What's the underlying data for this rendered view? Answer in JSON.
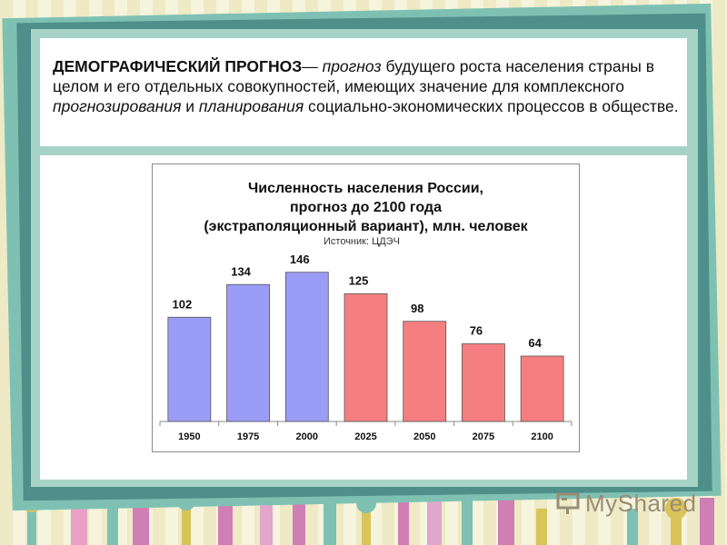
{
  "definition": {
    "term": "ДЕМОГРАФИЧЕСКИЙ ПРОГНОЗ",
    "dash": "—",
    "part1_italic": "прогноз",
    "part2": " будущего роста населения страны в целом и его отдельных совокупностей, имеющих значение для комплексного ",
    "part3_italic": "прогнозирования",
    "part4": " и ",
    "part5_italic": "планирования",
    "part6": " социально-экономических процессов в обществе."
  },
  "chart_data": {
    "type": "bar",
    "title_lines": [
      "Численность населения России,",
      "прогноз до 2100 года",
      "(экстраполяционный вариант), млн. человек"
    ],
    "source": "Источник: ЦДЭЧ",
    "categories": [
      "1950",
      "1975",
      "2000",
      "2025",
      "2050",
      "2075",
      "2100"
    ],
    "values": [
      102,
      134,
      146,
      125,
      98,
      76,
      64
    ],
    "data_labels": [
      "102",
      "134",
      "146",
      "125",
      "98",
      "76",
      "64"
    ],
    "colors": [
      "#9a9cf6",
      "#9a9cf6",
      "#9a9cf6",
      "#f57f80",
      "#f57f80",
      "#f57f80",
      "#f57f80"
    ],
    "ylim": [
      0,
      160
    ],
    "grid": false,
    "xlabel": "",
    "ylabel": ""
  },
  "logo": {
    "text": "MyShared",
    "icon": "presentation-board-icon"
  }
}
